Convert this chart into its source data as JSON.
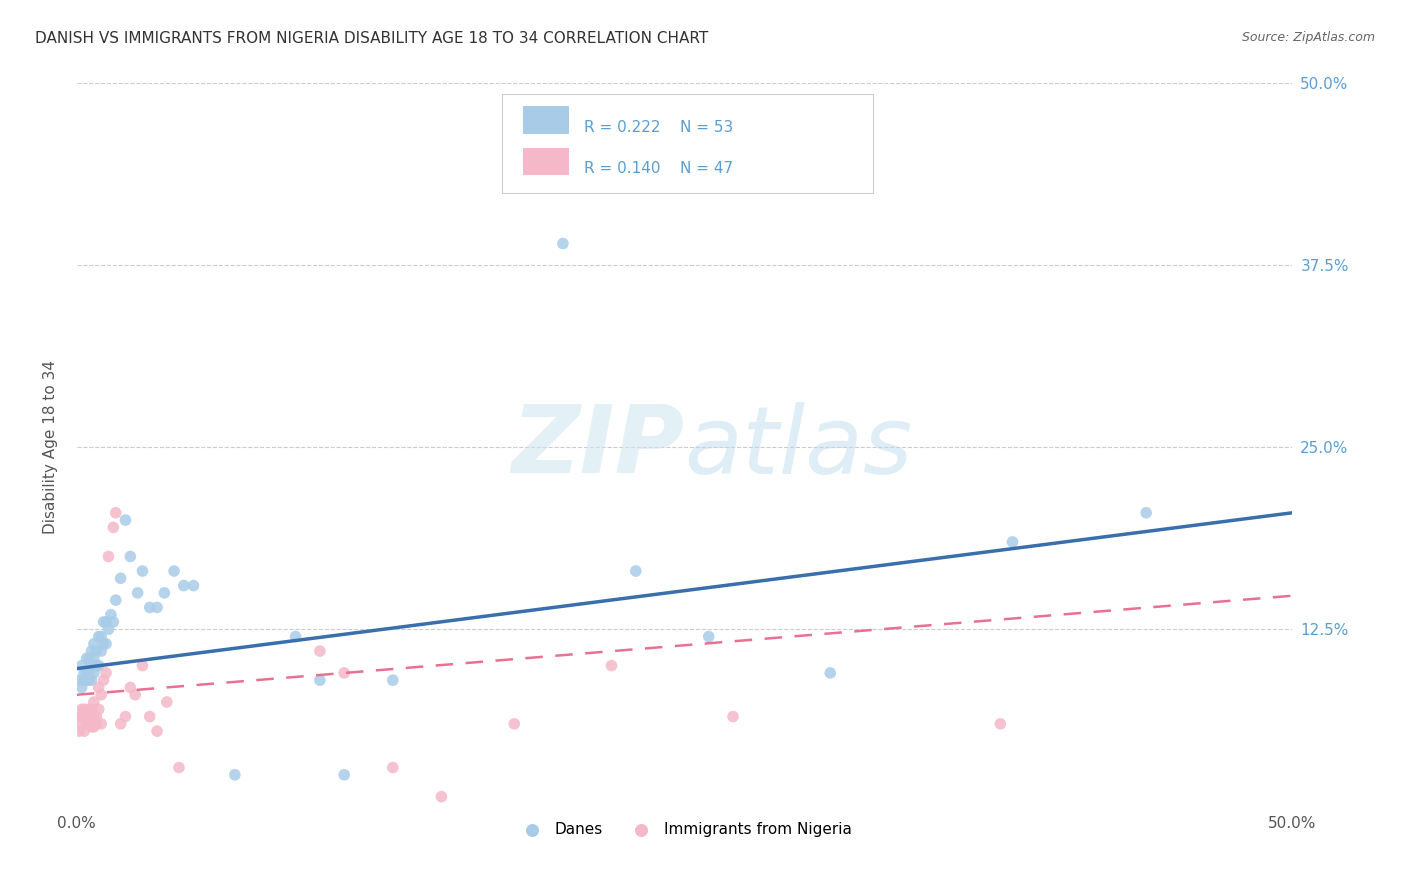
{
  "title": "DANISH VS IMMIGRANTS FROM NIGERIA DISABILITY AGE 18 TO 34 CORRELATION CHART",
  "source": "Source: ZipAtlas.com",
  "ylabel": "Disability Age 18 to 34",
  "xlim": [
    0.0,
    0.5
  ],
  "ylim": [
    0.0,
    0.5
  ],
  "xticks": [
    0.0,
    0.125,
    0.25,
    0.375,
    0.5
  ],
  "yticks": [
    0.0,
    0.125,
    0.25,
    0.375,
    0.5
  ],
  "xticklabels": [
    "0.0%",
    "",
    "",
    "",
    "50.0%"
  ],
  "right_yticklabels": [
    "",
    "12.5%",
    "25.0%",
    "37.5%",
    "50.0%"
  ],
  "danes_color": "#a8cce8",
  "nigeria_color": "#f4b8c8",
  "danes_line_color": "#3a6fad",
  "nigeria_line_color": "#e87090",
  "danes_R": 0.222,
  "danes_N": 53,
  "nigeria_R": 0.14,
  "nigeria_N": 47,
  "legend_label_danes": "Danes",
  "legend_label_nigeria": "Immigrants from Nigeria",
  "watermark_zip": "ZIP",
  "watermark_atlas": "atlas",
  "tick_label_color": "#5a9fd4",
  "legend_text_color": "#5a9fd4",
  "danes_x": [
    0.001,
    0.002,
    0.002,
    0.003,
    0.003,
    0.004,
    0.004,
    0.004,
    0.005,
    0.005,
    0.005,
    0.006,
    0.006,
    0.006,
    0.007,
    0.007,
    0.007,
    0.008,
    0.008,
    0.009,
    0.009,
    0.01,
    0.01,
    0.011,
    0.011,
    0.012,
    0.012,
    0.013,
    0.014,
    0.015,
    0.016,
    0.018,
    0.02,
    0.022,
    0.025,
    0.027,
    0.03,
    0.033,
    0.036,
    0.04,
    0.044,
    0.048,
    0.065,
    0.09,
    0.1,
    0.11,
    0.13,
    0.2,
    0.23,
    0.26,
    0.31,
    0.385,
    0.44
  ],
  "danes_y": [
    0.09,
    0.085,
    0.1,
    0.09,
    0.095,
    0.09,
    0.095,
    0.105,
    0.09,
    0.095,
    0.105,
    0.09,
    0.1,
    0.11,
    0.095,
    0.105,
    0.115,
    0.1,
    0.11,
    0.1,
    0.12,
    0.11,
    0.12,
    0.115,
    0.13,
    0.13,
    0.115,
    0.125,
    0.135,
    0.13,
    0.145,
    0.16,
    0.2,
    0.175,
    0.15,
    0.165,
    0.14,
    0.14,
    0.15,
    0.165,
    0.155,
    0.155,
    0.025,
    0.12,
    0.09,
    0.025,
    0.09,
    0.39,
    0.165,
    0.12,
    0.095,
    0.185,
    0.205
  ],
  "nigeria_x": [
    0.001,
    0.001,
    0.002,
    0.002,
    0.002,
    0.003,
    0.003,
    0.003,
    0.004,
    0.004,
    0.005,
    0.005,
    0.005,
    0.006,
    0.006,
    0.006,
    0.007,
    0.007,
    0.007,
    0.008,
    0.008,
    0.009,
    0.009,
    0.01,
    0.01,
    0.011,
    0.012,
    0.013,
    0.015,
    0.016,
    0.018,
    0.02,
    0.022,
    0.024,
    0.027,
    0.03,
    0.033,
    0.037,
    0.042,
    0.1,
    0.11,
    0.13,
    0.15,
    0.18,
    0.22,
    0.27,
    0.38
  ],
  "nigeria_y": [
    0.055,
    0.065,
    0.06,
    0.065,
    0.07,
    0.055,
    0.065,
    0.07,
    0.06,
    0.068,
    0.06,
    0.065,
    0.07,
    0.058,
    0.065,
    0.07,
    0.058,
    0.065,
    0.075,
    0.06,
    0.065,
    0.07,
    0.085,
    0.06,
    0.08,
    0.09,
    0.095,
    0.175,
    0.195,
    0.205,
    0.06,
    0.065,
    0.085,
    0.08,
    0.1,
    0.065,
    0.055,
    0.075,
    0.03,
    0.11,
    0.095,
    0.03,
    0.01,
    0.06,
    0.1,
    0.065,
    0.06
  ],
  "danes_trend_x": [
    0.0,
    0.5
  ],
  "danes_trend_y": [
    0.098,
    0.205
  ],
  "nigeria_trend_x": [
    0.0,
    0.5
  ],
  "nigeria_trend_y": [
    0.08,
    0.148
  ]
}
